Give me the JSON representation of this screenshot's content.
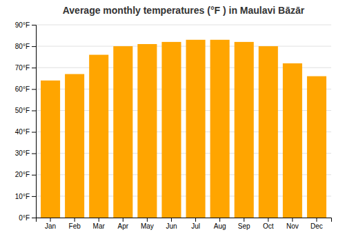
{
  "chart_data": {
    "type": "bar",
    "title": "Average monthly temperatures (°F ) in Maulavi Bāzār",
    "categories": [
      "Jan",
      "Feb",
      "Mar",
      "Apr",
      "May",
      "Jun",
      "Jul",
      "Aug",
      "Sep",
      "Oct",
      "Nov",
      "Dec"
    ],
    "values": [
      64,
      67,
      76,
      80,
      81,
      82,
      83,
      83,
      82,
      80,
      72,
      66
    ],
    "color": "#FFA500",
    "ylim": [
      0,
      90
    ],
    "yticks": [
      {
        "value": 0,
        "label": "0°F"
      },
      {
        "value": 10,
        "label": "10°F"
      },
      {
        "value": 20,
        "label": "20°F"
      },
      {
        "value": 30,
        "label": "30°F"
      },
      {
        "value": 40,
        "label": "40°F"
      },
      {
        "value": 50,
        "label": "50°F"
      },
      {
        "value": 60,
        "label": "60°F"
      },
      {
        "value": 70,
        "label": "70°F"
      },
      {
        "value": 80,
        "label": "80°F"
      },
      {
        "value": 90,
        "label": "90°F"
      }
    ],
    "grid": true
  }
}
